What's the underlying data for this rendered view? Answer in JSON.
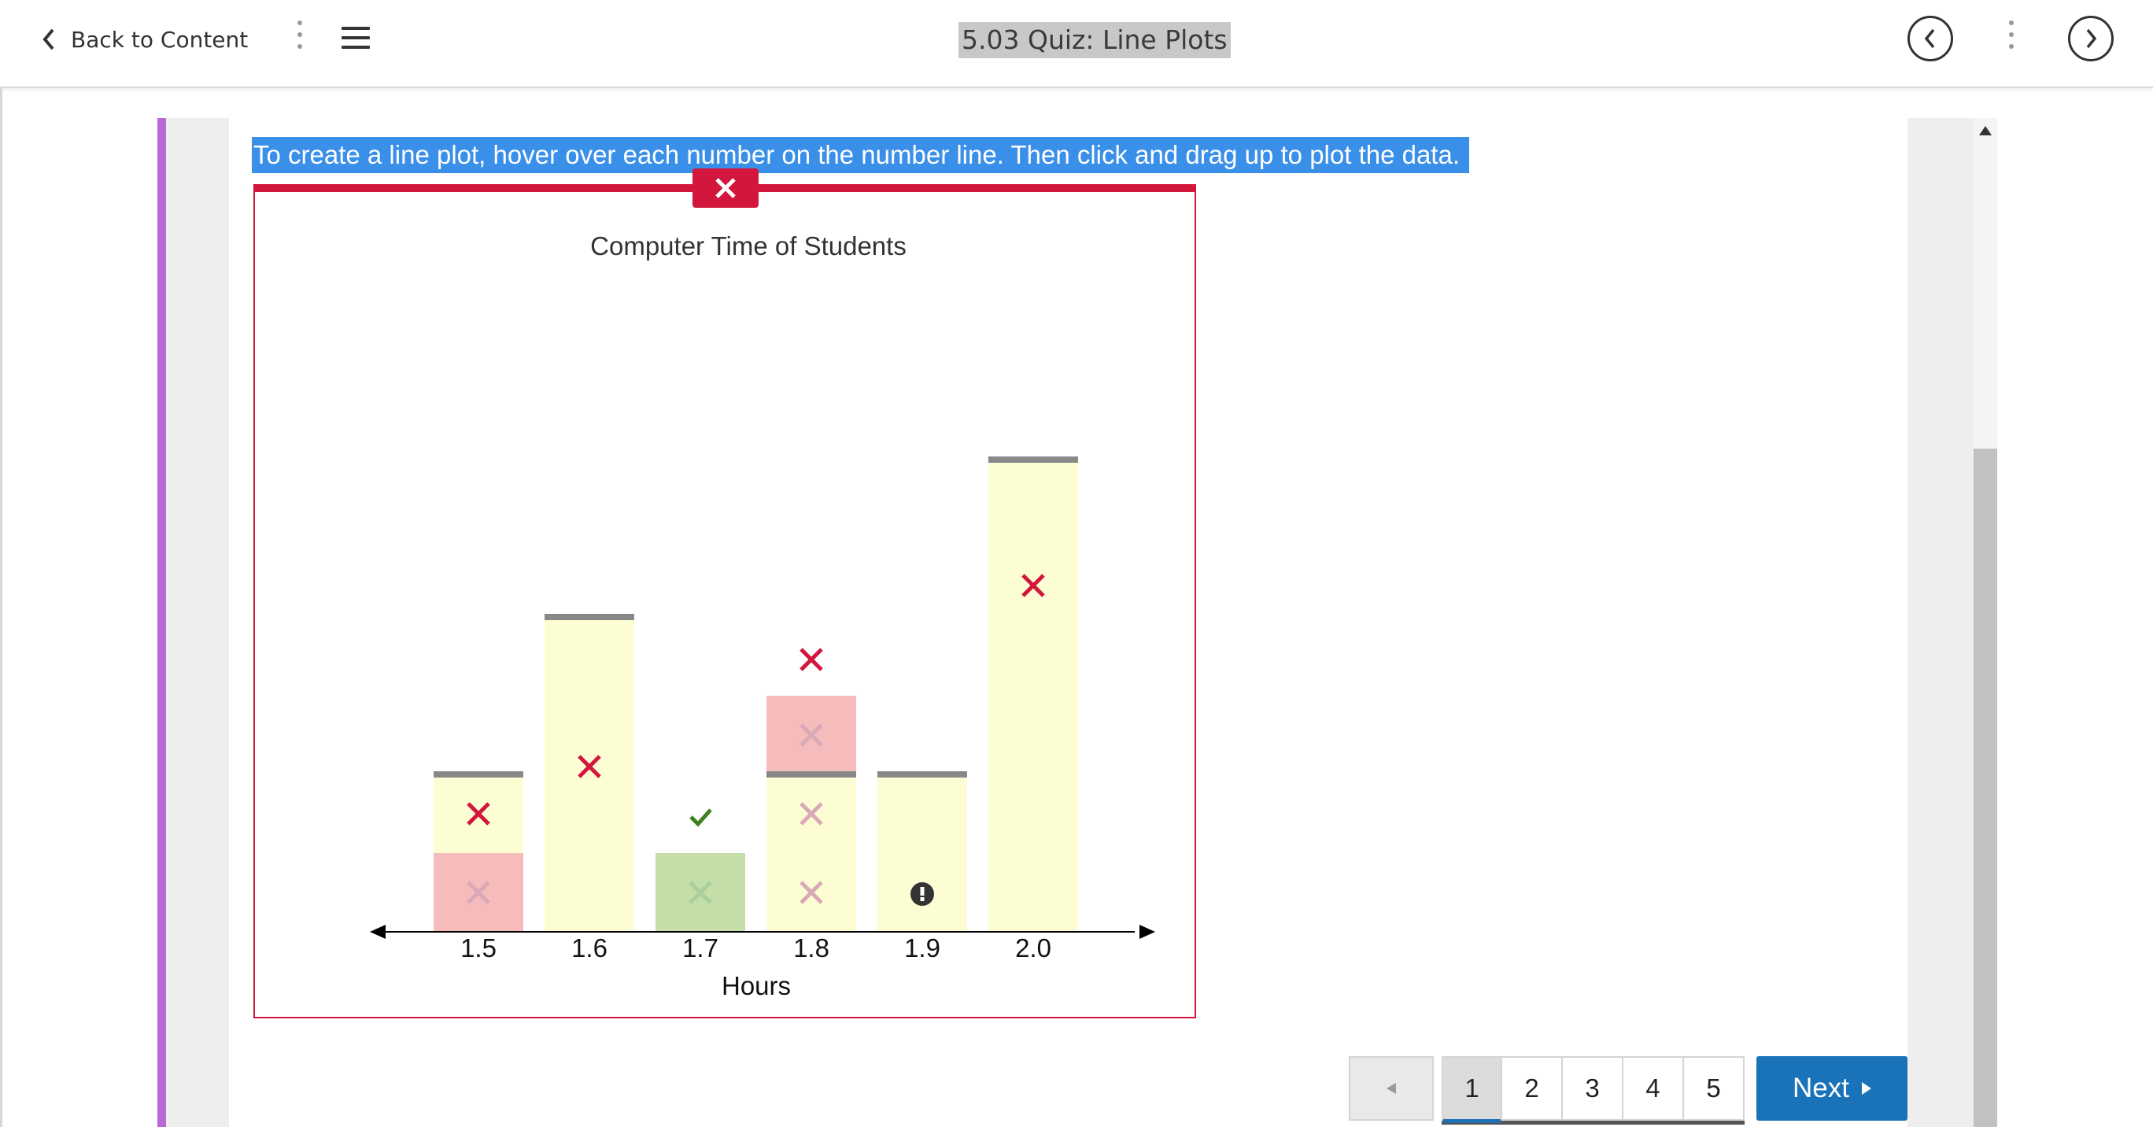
{
  "header": {
    "back_label": "Back to Content",
    "title": "5.03 Quiz: Line Plots"
  },
  "instructions": "To create a line plot, hover over each number on the number line. Then click and drag up to plot the data.",
  "chart_data": {
    "type": "line-plot",
    "title": "Computer Time of Students",
    "xlabel": "Hours",
    "categories": [
      "1.5",
      "1.6",
      "1.7",
      "1.8",
      "1.9",
      "2.0"
    ],
    "plotted_counts": [
      1,
      0,
      1,
      3,
      0,
      0
    ],
    "correct_counts": [
      2,
      4,
      1,
      2,
      2,
      6
    ],
    "feedback": [
      "incorrect",
      "incorrect",
      "correct",
      "incorrect",
      "missing",
      "incorrect"
    ],
    "colors": {
      "correct": "#c5dda6",
      "incorrect": "#f6bcbc",
      "missing": "#fdfdd3",
      "target_line": "#888888",
      "error_mark": "#d2163c",
      "check_mark": "#3f7f1f"
    }
  },
  "pagination": {
    "pages": [
      "1",
      "2",
      "3",
      "4",
      "5"
    ],
    "current": "1",
    "next_label": "Next"
  }
}
